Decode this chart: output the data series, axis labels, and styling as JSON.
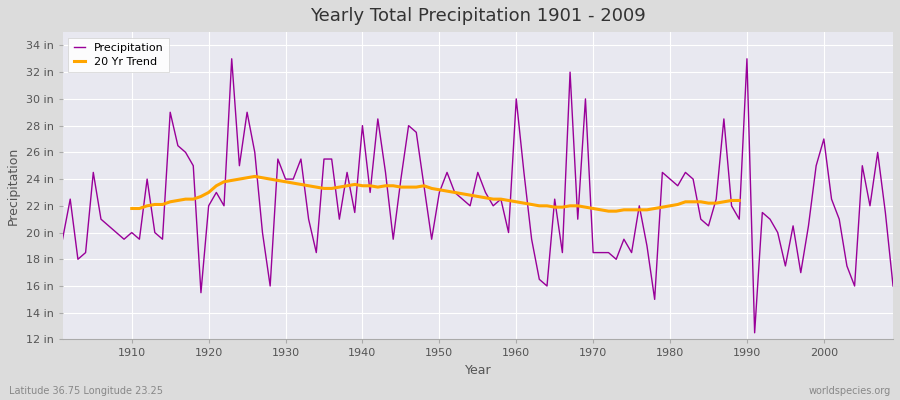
{
  "title": "Yearly Total Precipitation 1901 - 2009",
  "xlabel": "Year",
  "ylabel": "Precipitation",
  "footer_left": "Latitude 36.75 Longitude 23.25",
  "footer_right": "worldspecies.org",
  "legend": [
    "Precipitation",
    "20 Yr Trend"
  ],
  "precip_color": "#990099",
  "trend_color": "#FFA500",
  "background_color": "#DCDCDC",
  "plot_bg_color": "#E8E8F0",
  "grid_color": "#FFFFFF",
  "ylim": [
    12,
    35
  ],
  "yticks": [
    12,
    14,
    16,
    18,
    20,
    22,
    24,
    26,
    28,
    30,
    32,
    34
  ],
  "xlim": [
    1901,
    2009
  ],
  "xticks": [
    1910,
    1920,
    1930,
    1940,
    1950,
    1960,
    1970,
    1980,
    1990,
    2000
  ],
  "years": [
    1901,
    1902,
    1903,
    1904,
    1905,
    1906,
    1907,
    1908,
    1909,
    1910,
    1911,
    1912,
    1913,
    1914,
    1915,
    1916,
    1917,
    1918,
    1919,
    1920,
    1921,
    1922,
    1923,
    1924,
    1925,
    1926,
    1927,
    1928,
    1929,
    1930,
    1931,
    1932,
    1933,
    1934,
    1935,
    1936,
    1937,
    1938,
    1939,
    1940,
    1941,
    1942,
    1943,
    1944,
    1945,
    1946,
    1947,
    1948,
    1949,
    1950,
    1951,
    1952,
    1953,
    1954,
    1955,
    1956,
    1957,
    1958,
    1959,
    1960,
    1961,
    1962,
    1963,
    1964,
    1965,
    1966,
    1967,
    1968,
    1969,
    1970,
    1971,
    1972,
    1973,
    1974,
    1975,
    1976,
    1977,
    1978,
    1979,
    1980,
    1981,
    1982,
    1983,
    1984,
    1985,
    1986,
    1987,
    1988,
    1989,
    1990,
    1991,
    1992,
    1993,
    1994,
    1995,
    1996,
    1997,
    1998,
    1999,
    2000,
    2001,
    2002,
    2003,
    2004,
    2005,
    2006,
    2007,
    2008,
    2009
  ],
  "precip": [
    19.5,
    22.5,
    18.0,
    18.5,
    24.5,
    21.0,
    20.5,
    20.0,
    19.5,
    20.0,
    19.5,
    24.0,
    20.0,
    19.5,
    29.0,
    26.5,
    26.0,
    25.0,
    15.5,
    22.0,
    23.0,
    22.0,
    33.0,
    25.0,
    29.0,
    26.0,
    20.0,
    16.0,
    25.5,
    24.0,
    24.0,
    25.5,
    21.0,
    18.5,
    25.5,
    25.5,
    21.0,
    24.5,
    21.5,
    28.0,
    23.0,
    28.5,
    24.5,
    19.5,
    24.0,
    28.0,
    27.5,
    23.5,
    19.5,
    23.0,
    24.5,
    23.0,
    22.5,
    22.0,
    24.5,
    23.0,
    22.0,
    22.5,
    20.0,
    30.0,
    24.5,
    19.5,
    16.5,
    16.0,
    22.5,
    18.5,
    32.0,
    21.0,
    30.0,
    18.5,
    18.5,
    18.5,
    18.0,
    19.5,
    18.5,
    22.0,
    19.0,
    15.0,
    24.5,
    24.0,
    23.5,
    24.5,
    24.0,
    21.0,
    20.5,
    22.5,
    28.5,
    22.0,
    21.0,
    33.0,
    12.5,
    21.5,
    21.0,
    20.0,
    17.5,
    20.5,
    17.0,
    20.5,
    25.0,
    27.0,
    22.5,
    21.0,
    17.5,
    16.0,
    25.0,
    22.0,
    26.0,
    21.5,
    16.0
  ],
  "trend": [
    null,
    null,
    null,
    null,
    null,
    null,
    null,
    null,
    null,
    21.8,
    21.8,
    22.0,
    22.1,
    22.1,
    22.3,
    22.4,
    22.5,
    22.5,
    22.7,
    23.0,
    23.5,
    23.8,
    23.9,
    24.0,
    24.1,
    24.2,
    24.1,
    24.0,
    23.9,
    23.8,
    23.7,
    23.6,
    23.5,
    23.4,
    23.3,
    23.3,
    23.4,
    23.5,
    23.6,
    23.5,
    23.5,
    23.4,
    23.5,
    23.5,
    23.4,
    23.4,
    23.4,
    23.5,
    23.3,
    23.2,
    23.1,
    23.0,
    22.9,
    22.8,
    22.7,
    22.6,
    22.5,
    22.5,
    22.4,
    22.3,
    22.2,
    22.1,
    22.0,
    22.0,
    21.9,
    21.9,
    22.0,
    22.0,
    21.9,
    21.8,
    21.7,
    21.6,
    21.6,
    21.7,
    21.7,
    21.7,
    21.7,
    21.8,
    21.9,
    22.0,
    22.1,
    22.3,
    22.3,
    22.3,
    22.2,
    22.2,
    22.3,
    22.4,
    22.4,
    null,
    null,
    null,
    null,
    null,
    null,
    null,
    null,
    null,
    null,
    null,
    null,
    null,
    null,
    null,
    null,
    null,
    null,
    null,
    null
  ]
}
